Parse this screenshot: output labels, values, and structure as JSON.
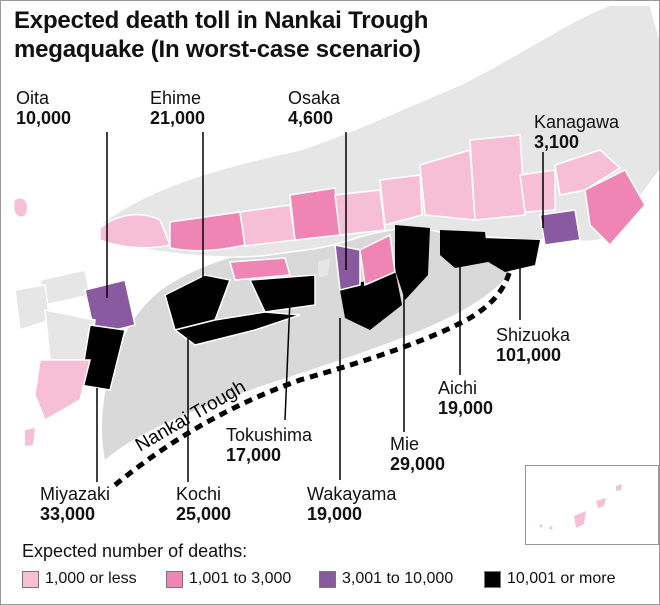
{
  "title_line1": "Expected death toll in Nankai Trough",
  "title_line2": "megaquake (In worst-case scenario)",
  "trough_label": "Nankai Trough",
  "legend_title": "Expected number of deaths:",
  "colors": {
    "le_1000": "#f7bfd6",
    "c1001_3000": "#ef85b4",
    "c3001_10000": "#8a5aa0",
    "ge_10001": "#000000",
    "land_other": "#e6e6e6",
    "sea_zone": "#d9d9d9"
  },
  "legend": [
    {
      "label": "1,000 or less",
      "color": "#f7bfd6"
    },
    {
      "label": "1,001 to 3,000",
      "color": "#ef85b4"
    },
    {
      "label": "3,001 to 10,000",
      "color": "#8a5aa0"
    },
    {
      "label": "10,001 or more",
      "color": "#000000"
    }
  ],
  "prefectures": {
    "oita": {
      "name": "Oita",
      "deaths": "10,000"
    },
    "ehime": {
      "name": "Ehime",
      "deaths": "21,000"
    },
    "osaka": {
      "name": "Osaka",
      "deaths": "4,600"
    },
    "kanagawa": {
      "name": "Kanagawa",
      "deaths": "3,100"
    },
    "shizuoka": {
      "name": "Shizuoka",
      "deaths": "101,000"
    },
    "aichi": {
      "name": "Aichi",
      "deaths": "19,000"
    },
    "mie": {
      "name": "Mie",
      "deaths": "29,000"
    },
    "tokushima": {
      "name": "Tokushima",
      "deaths": "17,000"
    },
    "wakayama": {
      "name": "Wakayama",
      "deaths": "19,000"
    },
    "kochi": {
      "name": "Kochi",
      "deaths": "25,000"
    },
    "miyazaki": {
      "name": "Miyazaki",
      "deaths": "33,000"
    }
  }
}
